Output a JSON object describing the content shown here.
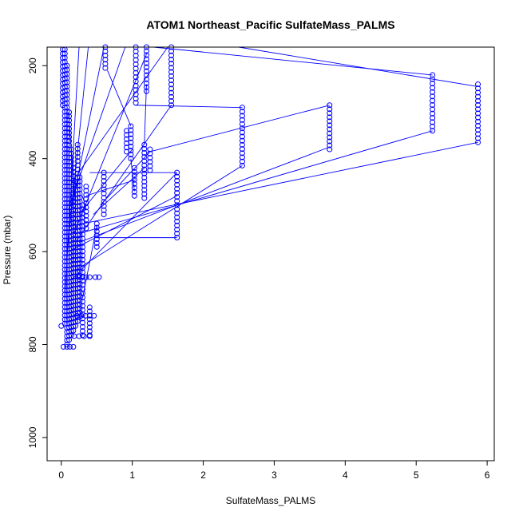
{
  "chart_data": {
    "type": "scatter",
    "title": "ATOM1 Northeast_Pacific SulfateMass_PALMS",
    "xlabel": "SulfateMass_PALMS",
    "ylabel": "Pressure (mbar)",
    "xlim": [
      -0.2,
      6.1
    ],
    "ylim": [
      1050,
      160
    ],
    "y_reversed": true,
    "x_ticks": [
      0,
      1,
      2,
      3,
      4,
      5,
      6
    ],
    "x_tick_labels": [
      "0",
      "1",
      "2",
      "3",
      "4",
      "5",
      "6"
    ],
    "y_ticks": [
      200,
      400,
      600,
      800,
      1000
    ],
    "y_tick_labels": [
      "200",
      "400",
      "600",
      "800",
      "1000"
    ],
    "grid": false,
    "legend": "none",
    "series_color": "#0000ff",
    "marker": "open-circle",
    "connected": true,
    "columns": [
      {
        "x": 0.02,
        "p": [
          165,
          285
        ]
      },
      {
        "x": 0.05,
        "p": [
          165,
          755
        ]
      },
      {
        "x": 0.08,
        "p": [
          200,
          800
        ]
      },
      {
        "x": 0.11,
        "p": [
          300,
          790
        ]
      },
      {
        "x": 0.14,
        "p": [
          380,
          780
        ]
      },
      {
        "x": 0.17,
        "p": [
          420,
          770
        ]
      },
      {
        "x": 0.2,
        "p": [
          450,
          760
        ]
      },
      {
        "x": 0.23,
        "p": [
          370,
          750
        ]
      },
      {
        "x": 0.26,
        "p": [
          440,
          740
        ]
      },
      {
        "x": 0.3,
        "p": [
          500,
          780
        ]
      },
      {
        "x": 0.35,
        "p": [
          460,
          550
        ]
      },
      {
        "x": 0.4,
        "p": [
          720,
          780
        ]
      },
      {
        "x": 0.5,
        "p": [
          540,
          590
        ]
      },
      {
        "x": 0.6,
        "p": [
          430,
          520
        ]
      },
      {
        "x": 0.62,
        "p": [
          160,
          205
        ]
      },
      {
        "x": 0.92,
        "p": [
          340,
          385
        ]
      },
      {
        "x": 0.98,
        "p": [
          330,
          400
        ]
      },
      {
        "x": 1.03,
        "p": [
          420,
          480
        ]
      },
      {
        "x": 1.05,
        "p": [
          160,
          280
        ]
      },
      {
        "x": 1.17,
        "p": [
          370,
          485
        ]
      },
      {
        "x": 1.2,
        "p": [
          160,
          255
        ]
      },
      {
        "x": 1.25,
        "p": [
          380,
          425
        ]
      },
      {
        "x": 1.55,
        "p": [
          160,
          285
        ]
      },
      {
        "x": 1.63,
        "p": [
          430,
          570
        ]
      },
      {
        "x": 2.55,
        "p": [
          290,
          415
        ]
      },
      {
        "x": 3.78,
        "p": [
          285,
          380
        ]
      },
      {
        "x": 5.23,
        "p": [
          220,
          340
        ]
      },
      {
        "x": 5.87,
        "p": [
          240,
          365
        ]
      }
    ],
    "points": [
      {
        "x": 0.0,
        "y": 760
      },
      {
        "x": 0.03,
        "y": 805
      },
      {
        "x": 0.08,
        "y": 805
      },
      {
        "x": 0.12,
        "y": 805
      },
      {
        "x": 0.17,
        "y": 805
      },
      {
        "x": 0.25,
        "y": 655
      },
      {
        "x": 0.3,
        "y": 655
      },
      {
        "x": 0.35,
        "y": 655
      },
      {
        "x": 0.4,
        "y": 655
      },
      {
        "x": 0.48,
        "y": 655
      },
      {
        "x": 0.53,
        "y": 655
      },
      {
        "x": 0.22,
        "y": 738
      },
      {
        "x": 0.28,
        "y": 738
      },
      {
        "x": 0.34,
        "y": 738
      },
      {
        "x": 0.4,
        "y": 738
      },
      {
        "x": 0.46,
        "y": 738
      },
      {
        "x": 0.18,
        "y": 782
      },
      {
        "x": 0.25,
        "y": 782
      },
      {
        "x": 0.32,
        "y": 782
      },
      {
        "x": 0.4,
        "y": 782
      }
    ],
    "lines": [
      {
        "x1": 0.05,
        "y1": 700,
        "x2": 0.25,
        "y2": 160
      },
      {
        "x1": 0.07,
        "y1": 620,
        "x2": 0.38,
        "y2": 160
      },
      {
        "x1": 0.1,
        "y1": 540,
        "x2": 0.6,
        "y2": 160
      },
      {
        "x1": 0.12,
        "y1": 500,
        "x2": 0.9,
        "y2": 160
      },
      {
        "x1": 0.15,
        "y1": 450,
        "x2": 1.5,
        "y2": 160
      },
      {
        "x1": 0.18,
        "y1": 560,
        "x2": 1.2,
        "y2": 175
      },
      {
        "x1": 0.2,
        "y1": 580,
        "x2": 1.55,
        "y2": 285
      },
      {
        "x1": 0.25,
        "y1": 520,
        "x2": 1.0,
        "y2": 380
      },
      {
        "x1": 0.1,
        "y1": 600,
        "x2": 1.63,
        "y2": 480
      },
      {
        "x1": 0.15,
        "y1": 660,
        "x2": 1.63,
        "y2": 430
      },
      {
        "x1": 0.2,
        "y1": 640,
        "x2": 2.55,
        "y2": 415
      },
      {
        "x1": 0.25,
        "y1": 580,
        "x2": 3.78,
        "y2": 375
      },
      {
        "x1": 0.28,
        "y1": 560,
        "x2": 5.23,
        "y2": 340
      },
      {
        "x1": 0.3,
        "y1": 540,
        "x2": 5.87,
        "y2": 365
      },
      {
        "x1": 0.35,
        "y1": 480,
        "x2": 1.05,
        "y2": 445
      },
      {
        "x1": 0.4,
        "y1": 430,
        "x2": 1.63,
        "y2": 430
      },
      {
        "x1": 0.5,
        "y1": 570,
        "x2": 1.63,
        "y2": 570
      },
      {
        "x1": 0.45,
        "y1": 520,
        "x2": 1.17,
        "y2": 420
      },
      {
        "x1": 0.55,
        "y1": 500,
        "x2": 1.25,
        "y2": 385
      },
      {
        "x1": 1.05,
        "y1": 285,
        "x2": 2.55,
        "y2": 290
      },
      {
        "x1": 1.2,
        "y1": 240,
        "x2": 1.17,
        "y2": 370
      },
      {
        "x1": 1.25,
        "y1": 385,
        "x2": 3.78,
        "y2": 285
      },
      {
        "x1": 1.3,
        "y1": 160,
        "x2": 5.23,
        "y2": 220
      },
      {
        "x1": 2.5,
        "y1": 160,
        "x2": 5.87,
        "y2": 245
      },
      {
        "x1": 0.65,
        "y1": 210,
        "x2": 0.98,
        "y2": 330
      },
      {
        "x1": 0.3,
        "y1": 700,
        "x2": 0.5,
        "y2": 545
      },
      {
        "x1": 0.98,
        "y1": 400,
        "x2": 1.03,
        "y2": 470
      },
      {
        "x1": 0.1,
        "y1": 300,
        "x2": 0.2,
        "y2": 500
      },
      {
        "x1": 0.3,
        "y1": 480,
        "x2": 0.35,
        "y2": 510
      }
    ]
  }
}
